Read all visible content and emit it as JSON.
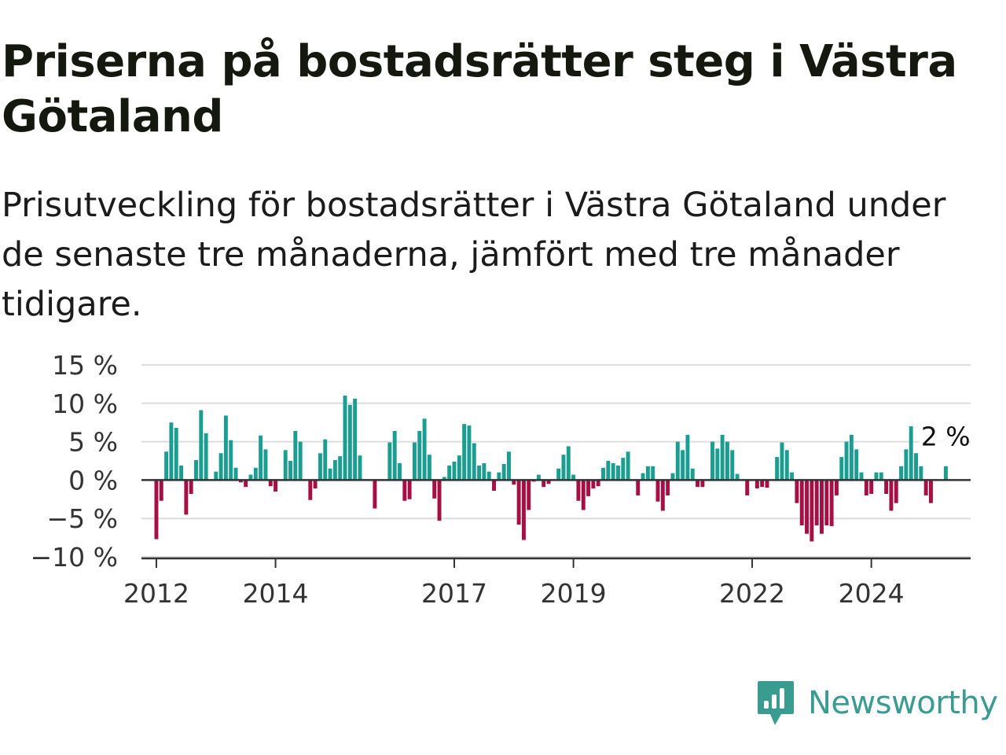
{
  "title": "Priserna på bostadsrätter steg i Västra Götaland",
  "subtitle": "Prisutveckling för bostadsrätter i Västra Götaland under de senaste tre månaderna, jämfört med tre månader tidigare.",
  "brand": {
    "name": "Newsworthy",
    "icon": "newsworthy-logo-icon"
  },
  "colors": {
    "positive": "#1b9e92",
    "negative": "#a50f43",
    "grid": "#dddddd",
    "zero_line": "#333333",
    "brand": "#3a9c91"
  },
  "chart_data": {
    "type": "bar",
    "title": "Priserna på bostadsrätter steg i Västra Götaland",
    "subtitle": "Prisutveckling för bostadsrätter i Västra Götaland under de senaste tre månaderna, jämfört med tre månader tidigare.",
    "xlabel": "",
    "ylabel": "",
    "unit": "%",
    "ylim": [
      -10,
      15
    ],
    "y_ticks": [
      15,
      10,
      5,
      0,
      -5,
      -10
    ],
    "y_tick_labels": [
      "15 %",
      "10 %",
      "5 %",
      "0 %",
      "−5 %",
      "−10 %"
    ],
    "x_range": [
      "2011-10",
      "2025-09"
    ],
    "x_ticks": [
      "2012-01",
      "2014-01",
      "2017-01",
      "2019-01",
      "2022-01",
      "2024-01"
    ],
    "x_tick_labels": [
      "2012",
      "2014",
      "2017",
      "2019",
      "2022",
      "2024"
    ],
    "grid": true,
    "legend": "none",
    "start_month": "2012-01",
    "values": [
      -7.7,
      -2.7,
      3.7,
      7.5,
      6.8,
      1.9,
      -4.5,
      -1.8,
      2.6,
      9.1,
      6.1,
      0,
      1.1,
      3.5,
      8.4,
      5.2,
      1.6,
      -0.3,
      -0.9,
      0.7,
      1.6,
      5.8,
      4,
      -0.8,
      -1.5,
      0,
      3.9,
      2.5,
      6.4,
      5,
      0,
      -2.6,
      -1.1,
      3.5,
      5.3,
      1.5,
      2.6,
      3.1,
      11,
      9.8,
      10.6,
      3.2,
      0,
      0,
      -3.7,
      0,
      0,
      4.9,
      6.4,
      2.2,
      -2.7,
      -2.5,
      4.9,
      6.4,
      8,
      3.3,
      -2.4,
      -5.3,
      0.4,
      1.9,
      2.4,
      3.2,
      7.3,
      7.1,
      4.8,
      1.9,
      2.2,
      1.1,
      -1.4,
      1,
      2.1,
      3.7,
      -0.6,
      -5.8,
      -7.8,
      -3.9,
      -0.2,
      0.7,
      -0.9,
      -0.5,
      0,
      1.5,
      3.3,
      4.4,
      0.7,
      -2.7,
      -3.9,
      -2.1,
      -1.1,
      -0.8,
      1.6,
      2.5,
      2.2,
      1.9,
      2.9,
      3.7,
      0,
      -2,
      0.9,
      1.8,
      1.8,
      -2.8,
      -4,
      -2,
      0.9,
      5,
      3.9,
      5.9,
      1.5,
      -0.9,
      -0.9,
      0,
      5,
      4.1,
      5.9,
      5,
      3.9,
      0.8,
      0,
      -2,
      0,
      -1.1,
      -0.9,
      -1,
      0,
      3,
      4.9,
      3.9,
      1,
      -3,
      -5.9,
      -7,
      -8,
      -5.9,
      -7,
      -5.9,
      -6,
      -2,
      3,
      5,
      5.9,
      4,
      1,
      -2,
      -1.8,
      1,
      1,
      -1.8,
      -4,
      -3,
      1.8,
      4,
      7,
      3.5,
      1.8,
      -2,
      -3,
      0,
      0,
      1.8
    ],
    "annotations": [
      {
        "text": "2 %",
        "x": "2024-11",
        "y": 5.5
      }
    ]
  }
}
